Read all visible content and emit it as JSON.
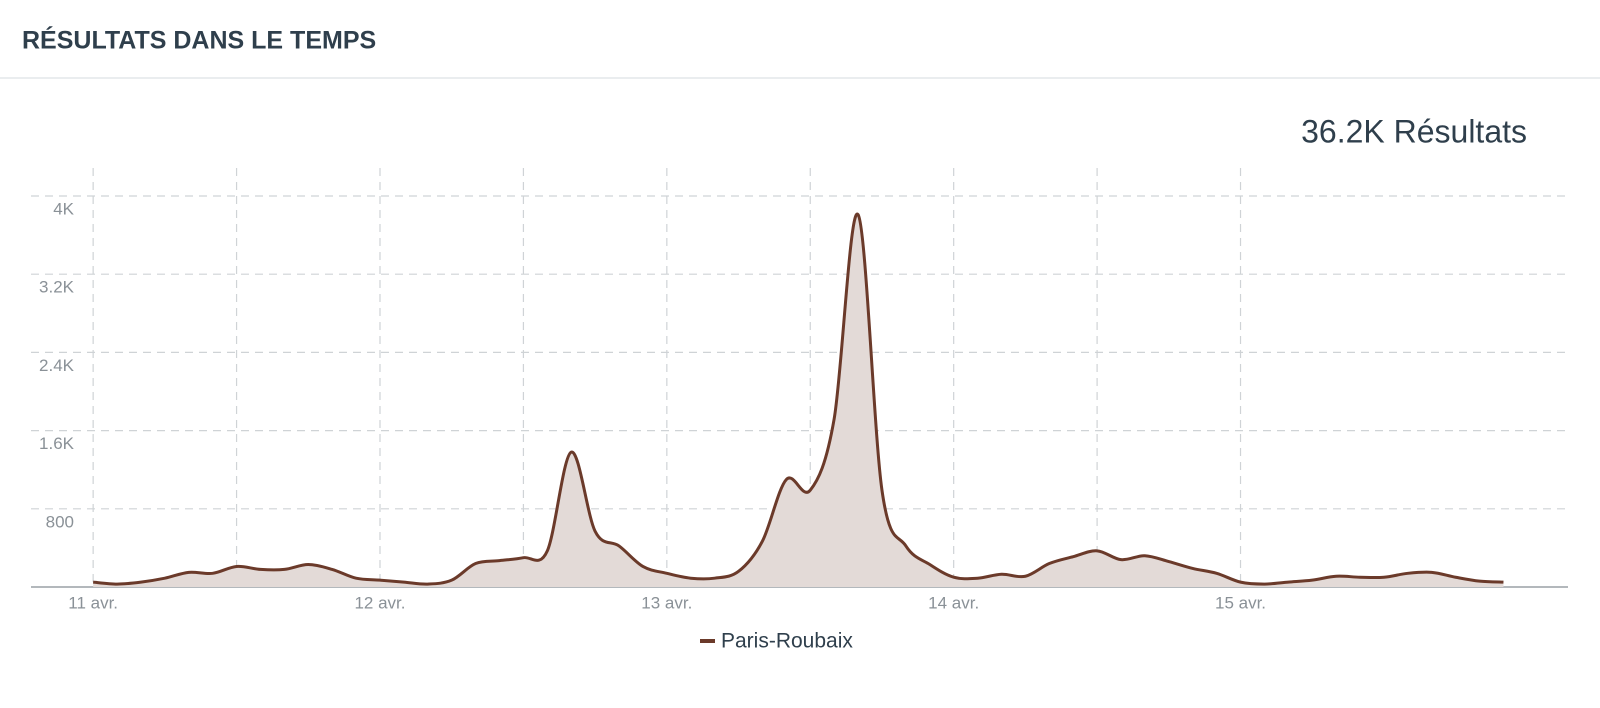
{
  "chart_data": {
    "type": "area",
    "title": "RÉSULTATS DANS LE TEMPS",
    "annotation": "36.2K Résultats",
    "x": [
      0,
      2,
      4,
      6,
      8,
      10,
      12,
      14,
      16,
      18,
      20,
      22,
      24,
      26,
      28,
      30,
      32,
      34,
      36,
      38,
      40,
      42,
      44,
      46,
      48,
      50,
      52,
      54,
      56,
      58,
      60,
      62,
      64,
      66,
      68,
      70,
      72,
      74,
      76,
      78,
      80,
      82,
      84,
      86,
      88,
      90,
      92,
      94,
      96,
      98,
      100,
      102,
      104,
      106,
      108,
      110,
      112,
      114,
      116,
      118
    ],
    "series": [
      {
        "name": "Paris-Roubaix",
        "color": "#6b3a2a",
        "fill": "#e3dad7",
        "values": [
          50,
          30,
          50,
          90,
          150,
          140,
          210,
          180,
          180,
          230,
          180,
          90,
          70,
          50,
          30,
          70,
          240,
          270,
          300,
          370,
          1380,
          570,
          420,
          210,
          140,
          90,
          90,
          160,
          470,
          1100,
          990,
          1720,
          3810,
          990,
          420,
          230,
          100,
          90,
          130,
          110,
          240,
          310,
          370,
          280,
          320,
          260,
          190,
          140,
          50,
          30,
          50,
          70,
          110,
          100,
          100,
          140,
          150,
          100,
          60,
          50
        ]
      }
    ],
    "xlim": [
      -5.2,
      123.4
    ],
    "xticks": [
      {
        "value": 0,
        "label": "11 avr."
      },
      {
        "value": 12,
        "label": null
      },
      {
        "value": 24,
        "label": "12 avr."
      },
      {
        "value": 36,
        "label": null
      },
      {
        "value": 48,
        "label": "13 avr."
      },
      {
        "value": 60,
        "label": null
      },
      {
        "value": 72,
        "label": "14 avr."
      },
      {
        "value": 84,
        "label": null
      },
      {
        "value": 96,
        "label": "15 avr."
      }
    ],
    "ylim": [
      0,
      4000
    ],
    "yticks": [
      800,
      {
        "value": 1600,
        "label": "1.6K"
      },
      {
        "value": 2400,
        "label": "2.4K"
      },
      {
        "value": 3200,
        "label": "3.2K"
      },
      {
        "value": 4000,
        "label": "4K"
      }
    ],
    "grid": true
  }
}
